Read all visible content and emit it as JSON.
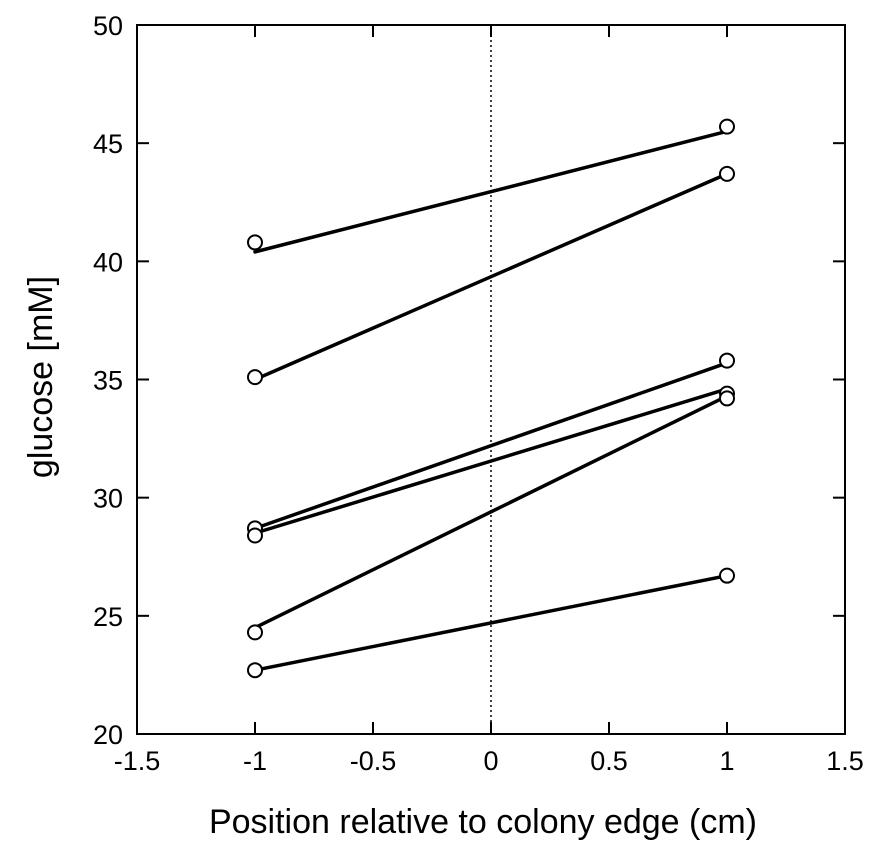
{
  "chart_data": {
    "type": "line",
    "xlabel": "Position relative to colony edge (cm)",
    "ylabel": "glucose [mM]",
    "xlim": [
      -1.5,
      1.5
    ],
    "ylim": [
      20,
      50
    ],
    "xticks": [
      -1.5,
      -1,
      -0.5,
      0,
      0.5,
      1,
      1.5
    ],
    "yticks": [
      20,
      25,
      30,
      35,
      40,
      45,
      50
    ],
    "xtick_labels": [
      "-1.5",
      "-1",
      "-0.5",
      "0",
      "0.5",
      "1",
      "1.5"
    ],
    "ytick_labels": [
      "20",
      "25",
      "30",
      "35",
      "40",
      "45",
      "50"
    ],
    "reference_line": {
      "x": 0,
      "style": "dotted"
    },
    "grid": false,
    "series": [
      {
        "points": [
          [
            -1,
            40.8
          ],
          [
            1,
            45.7
          ]
        ],
        "line": [
          [
            -1,
            40.4
          ],
          [
            1,
            45.5
          ]
        ]
      },
      {
        "points": [
          [
            -1,
            35.1
          ],
          [
            1,
            43.7
          ]
        ],
        "line": [
          [
            -1,
            35.0
          ],
          [
            1,
            43.7
          ]
        ]
      },
      {
        "points": [
          [
            -1,
            28.7
          ],
          [
            1,
            35.8
          ]
        ],
        "line": [
          [
            -1,
            28.7
          ],
          [
            1,
            35.7
          ]
        ]
      },
      {
        "points": [
          [
            -1,
            28.4
          ],
          [
            1,
            34.4
          ]
        ],
        "line": [
          [
            -1,
            28.5
          ],
          [
            1,
            34.6
          ]
        ]
      },
      {
        "points": [
          [
            -1,
            24.3
          ],
          [
            1,
            34.2
          ]
        ],
        "line": [
          [
            -1,
            24.5
          ],
          [
            1,
            34.3
          ]
        ]
      },
      {
        "points": [
          [
            -1,
            22.7
          ],
          [
            1,
            26.7
          ]
        ],
        "line": [
          [
            -1,
            22.7
          ],
          [
            1,
            26.7
          ]
        ]
      }
    ],
    "colors": {
      "line": "#000000",
      "marker_fill": "#ffffff",
      "marker_stroke": "#000000"
    }
  }
}
